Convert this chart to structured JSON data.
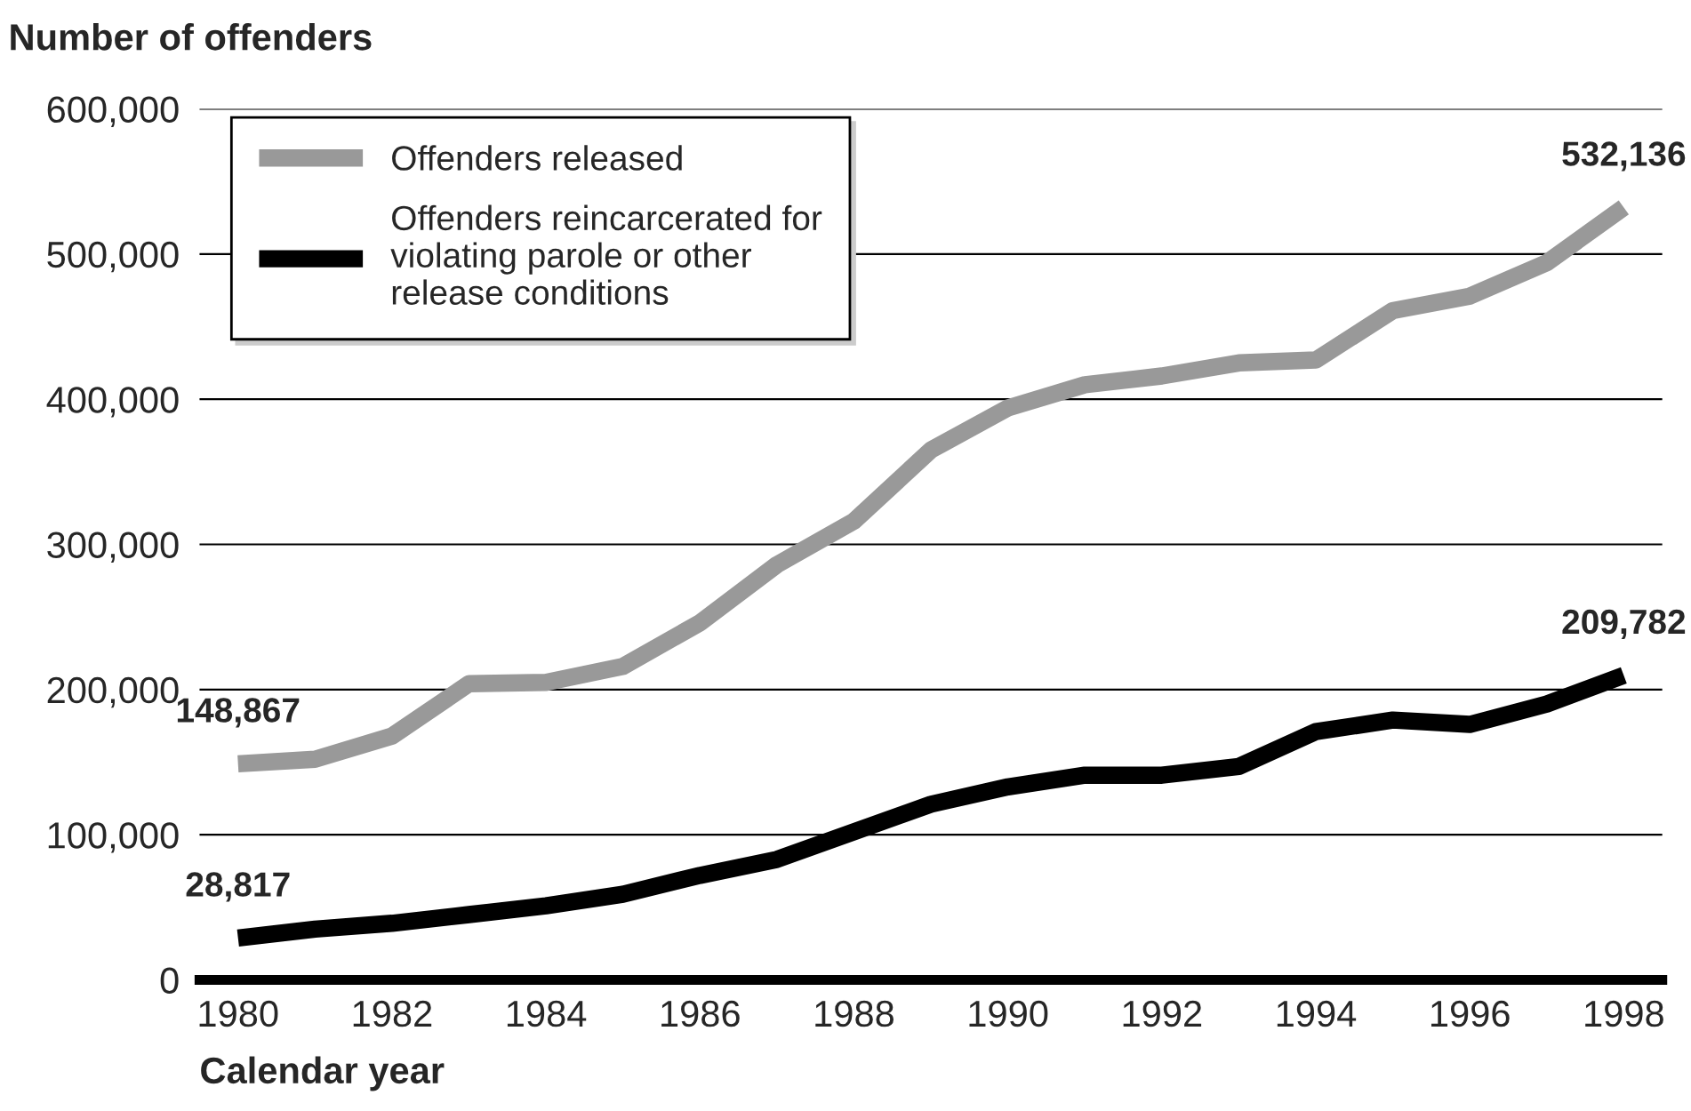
{
  "chart_data": {
    "type": "line",
    "xlabel": "Calendar year",
    "ylabel": "Number of offenders",
    "x": [
      1980,
      1981,
      1982,
      1983,
      1984,
      1985,
      1986,
      1987,
      1988,
      1989,
      1990,
      1991,
      1992,
      1993,
      1994,
      1995,
      1996,
      1997,
      1998
    ],
    "series": [
      {
        "name": "Offenders released",
        "color": "#999999",
        "values": [
          148867,
          152000,
          168000,
          204000,
          205000,
          216000,
          246000,
          286000,
          316000,
          365000,
          394000,
          410000,
          416000,
          425000,
          427000,
          461000,
          471000,
          494000,
          532136
        ],
        "value_labels": [
          "148,867",
          null,
          null,
          null,
          null,
          null,
          null,
          null,
          null,
          null,
          null,
          null,
          null,
          null,
          null,
          null,
          null,
          null,
          "532,136"
        ]
      },
      {
        "name": "Offenders reincarcerated for violating parole or other release conditions",
        "color": "#000000",
        "values": [
          28817,
          35000,
          39000,
          45000,
          51000,
          59000,
          72000,
          83000,
          102000,
          121000,
          133000,
          141000,
          141000,
          147000,
          171000,
          179000,
          176000,
          190000,
          209782
        ],
        "value_labels": [
          "28,817",
          null,
          null,
          null,
          null,
          null,
          null,
          null,
          null,
          null,
          null,
          null,
          null,
          null,
          null,
          null,
          null,
          null,
          "209,782"
        ]
      }
    ],
    "xlim": [
      1979.5,
      1998.5
    ],
    "xticks": [
      1980,
      1982,
      1984,
      1986,
      1988,
      1990,
      1992,
      1994,
      1996,
      1998
    ],
    "ylim": [
      0,
      600000
    ],
    "yticks": [
      {
        "value": 0,
        "label": "0"
      },
      {
        "value": 100000,
        "label": "100,000"
      },
      {
        "value": 200000,
        "label": "200,000"
      },
      {
        "value": 300000,
        "label": "300,000"
      },
      {
        "value": 400000,
        "label": "400,000"
      },
      {
        "value": 500000,
        "label": "500,000"
      },
      {
        "value": 600000,
        "label": "600,000"
      }
    ],
    "grid": "y",
    "legend": "top left",
    "line_style": "solid",
    "marker": "none"
  }
}
